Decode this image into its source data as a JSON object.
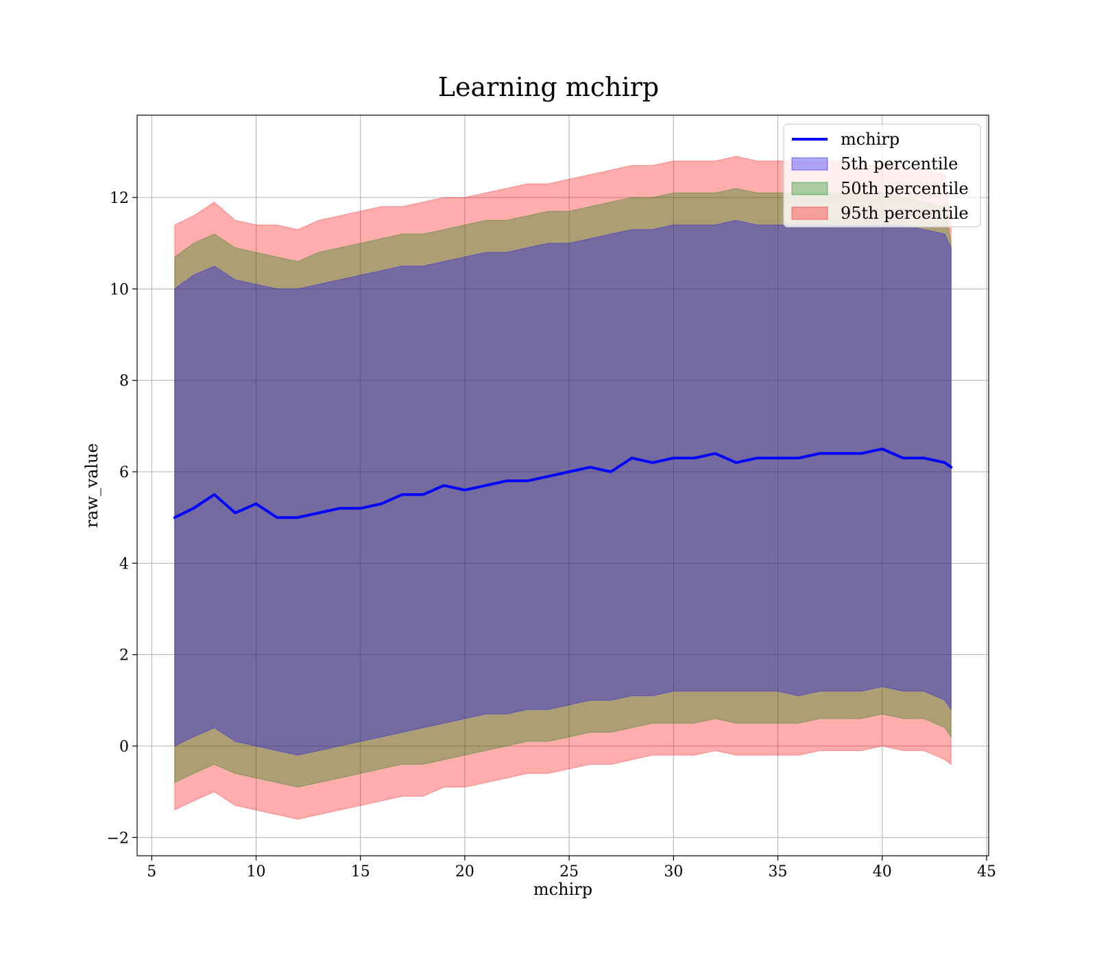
{
  "chart_data": {
    "type": "line",
    "title": "Learning mchirp",
    "xlabel": "mchirp",
    "ylabel": "raw_value",
    "xlim": [
      4.3,
      45.1
    ],
    "ylim": [
      -2.4,
      13.8
    ],
    "xticks": [
      5,
      10,
      15,
      20,
      25,
      30,
      35,
      40,
      45
    ],
    "yticks": [
      -2,
      0,
      2,
      4,
      6,
      8,
      10,
      12
    ],
    "xtick_labels": [
      "5",
      "10",
      "15",
      "20",
      "25",
      "30",
      "35",
      "40",
      "45"
    ],
    "ytick_labels": [
      "−2",
      "0",
      "2",
      "4",
      "6",
      "8",
      "10",
      "12"
    ],
    "grid": true,
    "legend_position": "top-right",
    "x": [
      6.1,
      7,
      8,
      9,
      10,
      11,
      12,
      13,
      14,
      15,
      16,
      17,
      18,
      19,
      20,
      21,
      22,
      23,
      24,
      25,
      26,
      27,
      28,
      29,
      30,
      31,
      32,
      33,
      34,
      35,
      36,
      37,
      38,
      39,
      40,
      41,
      42,
      43,
      43.3
    ],
    "line": {
      "name": "mchirp",
      "color": "#0000ff",
      "values": [
        5.0,
        5.2,
        5.5,
        5.1,
        5.3,
        5.0,
        5.0,
        5.1,
        5.2,
        5.2,
        5.3,
        5.5,
        5.5,
        5.7,
        5.6,
        5.7,
        5.8,
        5.8,
        5.9,
        6.0,
        6.1,
        6.0,
        6.3,
        6.2,
        6.3,
        6.3,
        6.4,
        6.2,
        6.3,
        6.3,
        6.3,
        6.4,
        6.4,
        6.4,
        6.5,
        6.3,
        6.3,
        6.2,
        6.1
      ]
    },
    "bands": [
      {
        "name": "95th percentile",
        "color": "#ff0000",
        "opacity": 0.32,
        "upper": [
          11.4,
          11.6,
          11.9,
          11.5,
          11.4,
          11.4,
          11.3,
          11.5,
          11.6,
          11.7,
          11.8,
          11.8,
          11.9,
          12.0,
          12.0,
          12.1,
          12.2,
          12.3,
          12.3,
          12.4,
          12.5,
          12.6,
          12.7,
          12.7,
          12.8,
          12.8,
          12.8,
          12.9,
          12.8,
          12.8,
          12.8,
          12.8,
          12.8,
          12.7,
          12.7,
          12.7,
          12.6,
          12.5,
          11.3
        ],
        "lower": [
          -1.4,
          -1.2,
          -1.0,
          -1.3,
          -1.4,
          -1.5,
          -1.6,
          -1.5,
          -1.4,
          -1.3,
          -1.2,
          -1.1,
          -1.1,
          -0.9,
          -0.9,
          -0.8,
          -0.7,
          -0.6,
          -0.6,
          -0.5,
          -0.4,
          -0.4,
          -0.3,
          -0.2,
          -0.2,
          -0.2,
          -0.1,
          -0.2,
          -0.2,
          -0.2,
          -0.2,
          -0.1,
          -0.1,
          -0.1,
          0.0,
          -0.1,
          -0.1,
          -0.3,
          -0.4
        ]
      },
      {
        "name": "50th percentile",
        "color": "#008000",
        "opacity": 0.32,
        "upper": [
          10.7,
          11.0,
          11.2,
          10.9,
          10.8,
          10.7,
          10.6,
          10.8,
          10.9,
          11.0,
          11.1,
          11.2,
          11.2,
          11.3,
          11.4,
          11.5,
          11.5,
          11.6,
          11.7,
          11.7,
          11.8,
          11.9,
          12.0,
          12.0,
          12.1,
          12.1,
          12.1,
          12.2,
          12.1,
          12.1,
          12.1,
          12.1,
          12.1,
          12.1,
          12.1,
          12.0,
          11.9,
          11.8,
          11.0
        ],
        "lower": [
          -0.8,
          -0.6,
          -0.4,
          -0.6,
          -0.7,
          -0.8,
          -0.9,
          -0.8,
          -0.7,
          -0.6,
          -0.5,
          -0.4,
          -0.4,
          -0.3,
          -0.2,
          -0.1,
          0.0,
          0.1,
          0.1,
          0.2,
          0.3,
          0.3,
          0.4,
          0.5,
          0.5,
          0.5,
          0.6,
          0.5,
          0.5,
          0.5,
          0.5,
          0.6,
          0.6,
          0.6,
          0.7,
          0.6,
          0.6,
          0.4,
          0.2
        ]
      },
      {
        "name": "5th percentile",
        "color": "#0000ff",
        "opacity": 0.32,
        "upper": [
          10.0,
          10.3,
          10.5,
          10.2,
          10.1,
          10.0,
          10.0,
          10.1,
          10.2,
          10.3,
          10.4,
          10.5,
          10.5,
          10.6,
          10.7,
          10.8,
          10.8,
          10.9,
          11.0,
          11.0,
          11.1,
          11.2,
          11.3,
          11.3,
          11.4,
          11.4,
          11.4,
          11.5,
          11.4,
          11.4,
          11.4,
          11.4,
          11.4,
          11.4,
          11.4,
          11.4,
          11.3,
          11.2,
          10.9
        ],
        "lower": [
          0.0,
          0.2,
          0.4,
          0.1,
          0.0,
          -0.1,
          -0.2,
          -0.1,
          0.0,
          0.1,
          0.2,
          0.3,
          0.4,
          0.5,
          0.6,
          0.7,
          0.7,
          0.8,
          0.8,
          0.9,
          1.0,
          1.0,
          1.1,
          1.1,
          1.2,
          1.2,
          1.2,
          1.2,
          1.2,
          1.2,
          1.1,
          1.2,
          1.2,
          1.2,
          1.3,
          1.2,
          1.2,
          1.0,
          0.8
        ]
      }
    ],
    "legend": [
      {
        "label": "mchirp",
        "kind": "line",
        "color": "#0000ff"
      },
      {
        "label": "5th percentile",
        "kind": "patch",
        "color": "#0000ff"
      },
      {
        "label": "50th percentile",
        "kind": "patch",
        "color": "#008000"
      },
      {
        "label": "95th percentile",
        "kind": "patch",
        "color": "#ff0000"
      }
    ]
  }
}
